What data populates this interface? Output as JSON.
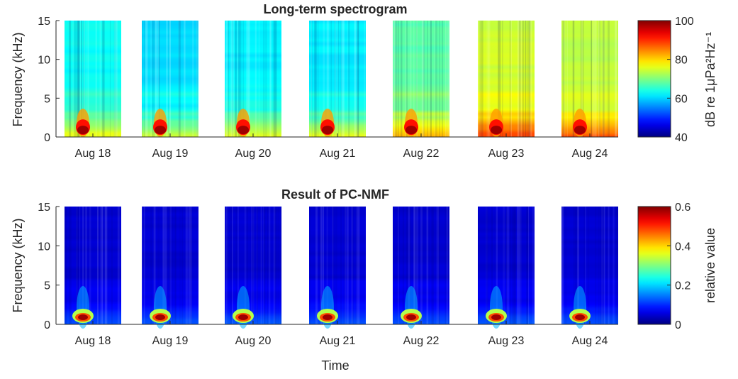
{
  "chart_data": [
    {
      "type": "heatmap",
      "title": "Long-term spectrogram",
      "xlabel": "",
      "ylabel": "Frequency (kHz)",
      "ylim": [
        0,
        15
      ],
      "yticks": [
        0,
        5,
        10,
        15
      ],
      "categories": [
        "Aug 18",
        "Aug 19",
        "Aug 20",
        "Aug 21",
        "Aug 22",
        "Aug 23",
        "Aug 24"
      ],
      "colorbar": {
        "label": "dB re 1μPa²Hz⁻¹",
        "range": [
          40,
          100
        ],
        "ticks": [
          40,
          60,
          80,
          100
        ]
      },
      "colormap": "jet",
      "daily_level": [
        0.38,
        0.34,
        0.36,
        0.36,
        0.46,
        0.58,
        0.56
      ],
      "hotspot_frequency_khz": 0.9,
      "hotspot_level": 1.0
    },
    {
      "type": "heatmap",
      "title": "Result of PC-NMF",
      "xlabel": "Time",
      "ylabel": "Frequency (kHz)",
      "ylim": [
        0,
        15
      ],
      "yticks": [
        0,
        5,
        10,
        15
      ],
      "categories": [
        "Aug 18",
        "Aug 19",
        "Aug 20",
        "Aug 21",
        "Aug 22",
        "Aug 23",
        "Aug 24"
      ],
      "colorbar": {
        "label": "relative value",
        "range": [
          0,
          0.6
        ],
        "ticks": [
          0,
          0.2,
          0.4,
          0.6
        ]
      },
      "colormap": "jet",
      "daily_level": [
        0.08,
        0.08,
        0.08,
        0.08,
        0.08,
        0.08,
        0.08
      ],
      "hotspot_frequency_khz": 0.9,
      "hotspot_level": 1.0
    }
  ],
  "colors": {
    "axis": "#262626",
    "background": "#ffffff"
  }
}
